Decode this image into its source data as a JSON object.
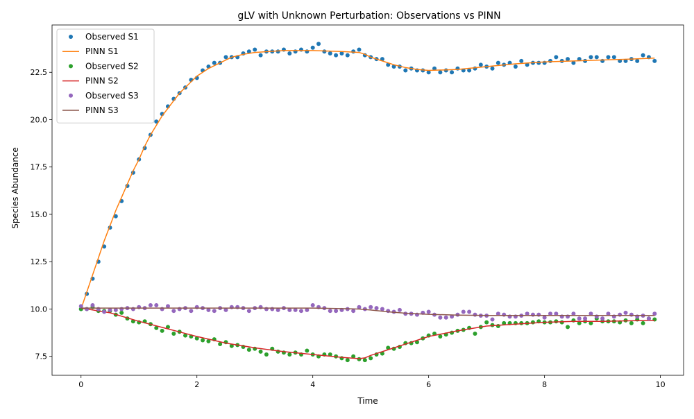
{
  "chart_data": {
    "type": "line",
    "title": "gLV with Unknown Perturbation: Observations vs PINN",
    "xlabel": "Time",
    "ylabel": "Species Abundance",
    "xlim": [
      -0.5,
      10.4
    ],
    "ylim": [
      6.5,
      25.0
    ],
    "xticks": [
      0,
      2,
      4,
      6,
      8,
      10
    ],
    "yticks": [
      7.5,
      10.0,
      12.5,
      15.0,
      17.5,
      20.0,
      22.5
    ],
    "xtick_labels": [
      "0",
      "2",
      "4",
      "6",
      "8",
      "10"
    ],
    "ytick_labels": [
      "7.5",
      "10.0",
      "12.5",
      "15.0",
      "17.5",
      "20.0",
      "22.5"
    ],
    "grid": false,
    "legend_position": "upper-left",
    "legend": [
      {
        "label": "Observed S1",
        "kind": "marker",
        "color": "#1f77b4"
      },
      {
        "label": "PINN S1",
        "kind": "line",
        "color": "#ff7f0e"
      },
      {
        "label": "Observed S2",
        "kind": "marker",
        "color": "#2ca02c"
      },
      {
        "label": "PINN S2",
        "kind": "line",
        "color": "#d62728"
      },
      {
        "label": "Observed S3",
        "kind": "marker",
        "color": "#9467bd"
      },
      {
        "label": "PINN S3",
        "kind": "line",
        "color": "#8c564b"
      }
    ],
    "series": [
      {
        "name": "Observed S1",
        "kind": "scatter",
        "color": "#1f77b4",
        "x": [
          0.0,
          0.1,
          0.2,
          0.3,
          0.4,
          0.5,
          0.6,
          0.7,
          0.8,
          0.9,
          1.0,
          1.1,
          1.2,
          1.3,
          1.4,
          1.5,
          1.6,
          1.7,
          1.8,
          1.9,
          2.0,
          2.1,
          2.2,
          2.3,
          2.4,
          2.5,
          2.6,
          2.7,
          2.8,
          2.9,
          3.0,
          3.1,
          3.2,
          3.3,
          3.4,
          3.5,
          3.6,
          3.7,
          3.8,
          3.9,
          4.0,
          4.1,
          4.2,
          4.3,
          4.4,
          4.5,
          4.6,
          4.7,
          4.8,
          4.9,
          5.0,
          5.1,
          5.2,
          5.3,
          5.4,
          5.5,
          5.6,
          5.7,
          5.8,
          5.9,
          6.0,
          6.1,
          6.2,
          6.3,
          6.4,
          6.5,
          6.6,
          6.7,
          6.8,
          6.9,
          7.0,
          7.1,
          7.2,
          7.3,
          7.4,
          7.5,
          7.6,
          7.7,
          7.8,
          7.9,
          8.0,
          8.1,
          8.2,
          8.3,
          8.4,
          8.5,
          8.6,
          8.7,
          8.8,
          8.9,
          9.0,
          9.1,
          9.2,
          9.3,
          9.4,
          9.5,
          9.6,
          9.7,
          9.8,
          9.9
        ],
        "y": [
          10.0,
          10.8,
          11.6,
          12.5,
          13.3,
          14.3,
          14.9,
          15.7,
          16.5,
          17.2,
          17.9,
          18.5,
          19.2,
          19.9,
          20.3,
          20.7,
          21.1,
          21.4,
          21.7,
          22.1,
          22.2,
          22.6,
          22.8,
          23.0,
          23.0,
          23.3,
          23.3,
          23.3,
          23.5,
          23.6,
          23.7,
          23.4,
          23.6,
          23.6,
          23.6,
          23.7,
          23.5,
          23.6,
          23.7,
          23.6,
          23.8,
          24.0,
          23.6,
          23.5,
          23.4,
          23.5,
          23.4,
          23.6,
          23.7,
          23.4,
          23.3,
          23.2,
          23.2,
          22.9,
          22.8,
          22.8,
          22.6,
          22.7,
          22.6,
          22.6,
          22.5,
          22.7,
          22.5,
          22.6,
          22.5,
          22.7,
          22.6,
          22.6,
          22.7,
          22.9,
          22.8,
          22.7,
          23.0,
          22.9,
          23.0,
          22.8,
          23.1,
          22.9,
          23.0,
          23.0,
          23.0,
          23.1,
          23.3,
          23.1,
          23.2,
          23.0,
          23.2,
          23.1,
          23.3,
          23.3,
          23.1,
          23.3,
          23.3,
          23.1,
          23.1,
          23.2,
          23.1,
          23.4,
          23.3,
          23.1
        ]
      },
      {
        "name": "PINN S1",
        "kind": "line",
        "color": "#ff7f0e",
        "x": [
          0.0,
          0.1,
          0.2,
          0.3,
          0.4,
          0.5,
          0.6,
          0.7,
          0.8,
          0.9,
          1.0,
          1.1,
          1.2,
          1.3,
          1.4,
          1.5,
          1.6,
          1.7,
          1.8,
          1.9,
          2.0,
          2.2,
          2.4,
          2.6,
          2.8,
          3.0,
          3.5,
          4.0,
          4.5,
          4.8,
          4.9,
          5.0,
          5.2,
          5.4,
          5.6,
          5.8,
          6.0,
          6.5,
          7.0,
          7.5,
          8.0,
          8.5,
          9.0,
          9.5,
          9.9
        ],
        "y": [
          10.0,
          10.9,
          11.8,
          12.7,
          13.6,
          14.4,
          15.2,
          15.9,
          16.6,
          17.3,
          17.9,
          18.6,
          19.2,
          19.7,
          20.2,
          20.6,
          21.0,
          21.4,
          21.7,
          22.0,
          22.3,
          22.7,
          23.0,
          23.3,
          23.45,
          23.55,
          23.65,
          23.65,
          23.6,
          23.55,
          23.45,
          23.3,
          23.1,
          22.9,
          22.75,
          22.65,
          22.6,
          22.65,
          22.8,
          22.95,
          23.05,
          23.1,
          23.15,
          23.2,
          23.25
        ]
      },
      {
        "name": "Observed S2",
        "kind": "scatter",
        "color": "#2ca02c",
        "x": [
          0.0,
          0.1,
          0.2,
          0.3,
          0.4,
          0.5,
          0.6,
          0.7,
          0.8,
          0.9,
          1.0,
          1.1,
          1.2,
          1.3,
          1.4,
          1.5,
          1.6,
          1.7,
          1.8,
          1.9,
          2.0,
          2.1,
          2.2,
          2.3,
          2.4,
          2.5,
          2.6,
          2.7,
          2.8,
          2.9,
          3.0,
          3.1,
          3.2,
          3.3,
          3.4,
          3.5,
          3.6,
          3.7,
          3.8,
          3.9,
          4.0,
          4.1,
          4.2,
          4.3,
          4.4,
          4.5,
          4.6,
          4.7,
          4.8,
          4.9,
          5.0,
          5.1,
          5.2,
          5.3,
          5.4,
          5.5,
          5.6,
          5.7,
          5.8,
          5.9,
          6.0,
          6.1,
          6.2,
          6.3,
          6.4,
          6.5,
          6.6,
          6.7,
          6.8,
          6.9,
          7.0,
          7.1,
          7.2,
          7.3,
          7.4,
          7.5,
          7.6,
          7.7,
          7.8,
          7.9,
          8.0,
          8.1,
          8.2,
          8.3,
          8.4,
          8.5,
          8.6,
          8.7,
          8.8,
          8.9,
          9.0,
          9.1,
          9.2,
          9.3,
          9.4,
          9.5,
          9.6,
          9.7,
          9.8,
          9.9
        ],
        "y": [
          10.0,
          10.0,
          10.1,
          9.9,
          9.9,
          9.9,
          9.7,
          9.8,
          9.5,
          9.35,
          9.3,
          9.35,
          9.2,
          9.0,
          8.85,
          9.05,
          8.7,
          8.8,
          8.6,
          8.55,
          8.45,
          8.35,
          8.3,
          8.4,
          8.15,
          8.25,
          8.05,
          8.1,
          8.0,
          7.85,
          7.9,
          7.75,
          7.6,
          7.9,
          7.75,
          7.7,
          7.6,
          7.7,
          7.6,
          7.8,
          7.6,
          7.5,
          7.6,
          7.6,
          7.5,
          7.4,
          7.3,
          7.5,
          7.35,
          7.3,
          7.4,
          7.6,
          7.65,
          7.95,
          7.9,
          8.0,
          8.2,
          8.2,
          8.25,
          8.45,
          8.6,
          8.7,
          8.55,
          8.65,
          8.75,
          8.85,
          8.9,
          9.0,
          8.7,
          9.05,
          9.3,
          9.15,
          9.1,
          9.25,
          9.25,
          9.25,
          9.25,
          9.25,
          9.3,
          9.35,
          9.3,
          9.3,
          9.35,
          9.3,
          9.05,
          9.4,
          9.25,
          9.35,
          9.25,
          9.5,
          9.35,
          9.35,
          9.35,
          9.3,
          9.4,
          9.25,
          9.45,
          9.25,
          9.5,
          9.45
        ]
      },
      {
        "name": "PINN S2",
        "kind": "line",
        "color": "#d62728",
        "x": [
          0.0,
          0.5,
          1.0,
          1.5,
          2.0,
          2.5,
          3.0,
          3.5,
          4.0,
          4.5,
          4.8,
          4.9,
          5.0,
          5.2,
          5.5,
          5.8,
          6.0,
          6.5,
          7.0,
          7.5,
          8.0,
          8.5,
          9.0,
          9.5,
          9.9
        ],
        "y": [
          10.05,
          9.8,
          9.35,
          8.95,
          8.55,
          8.2,
          7.95,
          7.75,
          7.6,
          7.45,
          7.38,
          7.42,
          7.55,
          7.75,
          8.05,
          8.35,
          8.55,
          8.85,
          9.1,
          9.2,
          9.3,
          9.35,
          9.35,
          9.38,
          9.4
        ]
      },
      {
        "name": "Observed S3",
        "kind": "scatter",
        "color": "#9467bd",
        "x": [
          0.0,
          0.1,
          0.2,
          0.3,
          0.4,
          0.5,
          0.6,
          0.7,
          0.8,
          0.9,
          1.0,
          1.1,
          1.2,
          1.3,
          1.4,
          1.5,
          1.6,
          1.7,
          1.8,
          1.9,
          2.0,
          2.1,
          2.2,
          2.3,
          2.4,
          2.5,
          2.6,
          2.7,
          2.8,
          2.9,
          3.0,
          3.1,
          3.2,
          3.3,
          3.4,
          3.5,
          3.6,
          3.7,
          3.8,
          3.9,
          4.0,
          4.1,
          4.2,
          4.3,
          4.4,
          4.5,
          4.6,
          4.7,
          4.8,
          4.9,
          5.0,
          5.1,
          5.2,
          5.3,
          5.4,
          5.5,
          5.6,
          5.7,
          5.8,
          5.9,
          6.0,
          6.1,
          6.2,
          6.3,
          6.4,
          6.5,
          6.6,
          6.7,
          6.8,
          6.9,
          7.0,
          7.1,
          7.2,
          7.3,
          7.4,
          7.5,
          7.6,
          7.7,
          7.8,
          7.9,
          8.0,
          8.1,
          8.2,
          8.3,
          8.4,
          8.5,
          8.6,
          8.7,
          8.8,
          8.9,
          9.0,
          9.1,
          9.2,
          9.3,
          9.4,
          9.5,
          9.6,
          9.7,
          9.8,
          9.9
        ],
        "y": [
          10.15,
          10.0,
          10.2,
          10.0,
          9.85,
          9.95,
          9.95,
          10.0,
          10.05,
          10.0,
          10.1,
          10.05,
          10.2,
          10.2,
          10.0,
          10.15,
          9.9,
          10.0,
          10.05,
          9.9,
          10.1,
          10.05,
          9.95,
          9.9,
          10.05,
          9.95,
          10.1,
          10.1,
          10.05,
          9.9,
          10.05,
          10.1,
          10.0,
          10.0,
          9.95,
          10.05,
          9.95,
          9.95,
          9.9,
          9.95,
          10.2,
          10.1,
          10.05,
          9.9,
          9.9,
          9.95,
          10.0,
          9.9,
          10.1,
          10.0,
          10.1,
          10.05,
          10.0,
          9.9,
          9.85,
          9.95,
          9.75,
          9.75,
          9.7,
          9.8,
          9.85,
          9.7,
          9.55,
          9.55,
          9.6,
          9.7,
          9.85,
          9.85,
          9.7,
          9.65,
          9.65,
          9.45,
          9.75,
          9.7,
          9.6,
          9.6,
          9.65,
          9.75,
          9.7,
          9.7,
          9.55,
          9.75,
          9.75,
          9.6,
          9.6,
          9.75,
          9.5,
          9.5,
          9.75,
          9.6,
          9.5,
          9.75,
          9.6,
          9.7,
          9.8,
          9.7,
          9.6,
          9.65,
          9.5,
          9.75
        ]
      },
      {
        "name": "PINN S3",
        "kind": "line",
        "color": "#8c564b",
        "x": [
          0.0,
          0.5,
          1.0,
          1.5,
          2.0,
          2.5,
          3.0,
          3.5,
          4.0,
          4.5,
          4.8,
          5.0,
          5.3,
          5.6,
          6.0,
          6.5,
          7.0,
          7.5,
          8.0,
          8.5,
          9.0,
          9.5,
          9.9
        ],
        "y": [
          10.05,
          10.05,
          10.05,
          10.05,
          10.05,
          10.05,
          10.05,
          10.05,
          10.05,
          10.02,
          10.0,
          9.95,
          9.85,
          9.78,
          9.72,
          9.68,
          9.66,
          9.66,
          9.66,
          9.66,
          9.66,
          9.66,
          9.66
        ]
      }
    ]
  }
}
